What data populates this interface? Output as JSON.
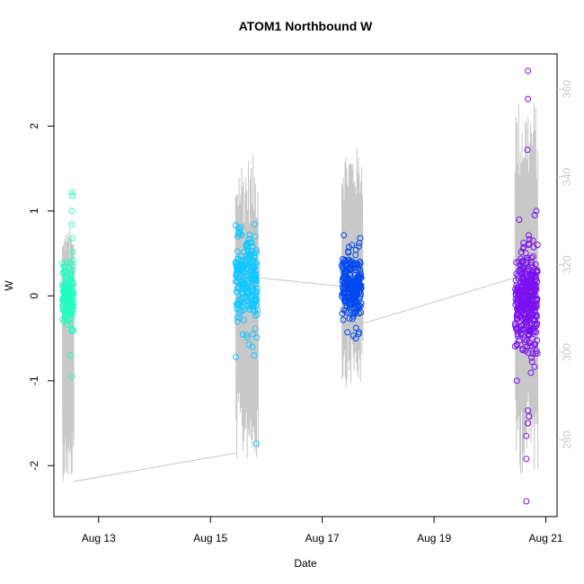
{
  "chart_data": {
    "type": "scatter",
    "title": "ATOM1 Northbound W",
    "xlabel": "Date",
    "ylabel": "W",
    "x_ticks": [
      "Aug 13",
      "Aug 15",
      "Aug 17",
      "Aug 19",
      "Aug 21"
    ],
    "x_tick_days": [
      13,
      15,
      17,
      19,
      21
    ],
    "x_range_days": [
      12.2,
      21.2
    ],
    "y_ticks": [
      -2,
      -1,
      0,
      1,
      2
    ],
    "ylim": [
      -2.6,
      2.85
    ],
    "y2_ticks": [
      280,
      300,
      320,
      340,
      360
    ],
    "y2lim": [
      262.5,
      368
    ],
    "grid": false,
    "clusters": [
      {
        "color": "#1EFFC0",
        "day_range": [
          12.35,
          12.55
        ],
        "n": 130,
        "y_mean": 0.0,
        "y_sd": 0.18,
        "outliers": [
          [
            12.52,
            1.22
          ],
          [
            12.53,
            1.18
          ],
          [
            12.52,
            1.0
          ],
          [
            12.52,
            0.84
          ],
          [
            12.53,
            0.68
          ],
          [
            12.54,
            0.42
          ],
          [
            12.5,
            -0.7
          ],
          [
            12.52,
            -0.95
          ],
          [
            12.4,
            0.35
          ],
          [
            12.38,
            -0.3
          ]
        ]
      },
      {
        "color": "#10C8FF",
        "day_range": [
          15.45,
          15.85
        ],
        "n": 220,
        "y_mean": 0.15,
        "y_sd": 0.25,
        "outliers": [
          [
            15.5,
            0.8
          ],
          [
            15.52,
            0.78
          ],
          [
            15.7,
            0.72
          ],
          [
            15.8,
            0.7
          ],
          [
            15.75,
            -0.6
          ],
          [
            15.78,
            -0.7
          ],
          [
            15.82,
            -1.74
          ],
          [
            15.65,
            0.6
          ]
        ]
      },
      {
        "color": "#0048F0",
        "day_range": [
          17.35,
          17.7
        ],
        "n": 230,
        "y_mean": 0.1,
        "y_sd": 0.2,
        "outliers": [
          [
            17.68,
            0.68
          ],
          [
            17.66,
            0.62
          ],
          [
            17.45,
            -0.43
          ],
          [
            17.6,
            -0.5
          ],
          [
            17.65,
            -0.45
          ]
        ]
      },
      {
        "color": "#7A10F0",
        "day_range": [
          20.45,
          20.85
        ],
        "n": 340,
        "y_mean": -0.05,
        "y_sd": 0.3,
        "outliers": [
          [
            20.68,
            2.65
          ],
          [
            20.68,
            2.32
          ],
          [
            20.67,
            1.72
          ],
          [
            20.83,
            1.0
          ],
          [
            20.8,
            0.95
          ],
          [
            20.68,
            -1.35
          ],
          [
            20.7,
            -1.42
          ],
          [
            20.68,
            -1.5
          ],
          [
            20.65,
            -1.65
          ],
          [
            20.65,
            -1.92
          ],
          [
            20.65,
            -2.42
          ],
          [
            20.48,
            -1.0
          ],
          [
            20.85,
            0.6
          ],
          [
            20.55,
            0.35
          ]
        ]
      }
    ],
    "secondary_series": {
      "color": "#c8c8c8",
      "bursts": [
        {
          "day_range": [
            12.35,
            12.55
          ],
          "low": 270.5,
          "high": 328.5
        },
        {
          "day_range": [
            15.45,
            15.85
          ],
          "low": 275,
          "high": 345
        },
        {
          "day_range": [
            17.35,
            17.72
          ],
          "low": 292,
          "high": 347
        },
        {
          "day_range": [
            20.45,
            20.85
          ],
          "low": 272,
          "high": 358
        }
      ],
      "connectors": [
        [
          [
            12.55,
            270.5
          ],
          [
            15.45,
            277
          ]
        ],
        [
          [
            15.85,
            317
          ],
          [
            17.35,
            315
          ]
        ],
        [
          [
            17.72,
            306.5
          ],
          [
            20.45,
            317
          ]
        ]
      ]
    }
  }
}
